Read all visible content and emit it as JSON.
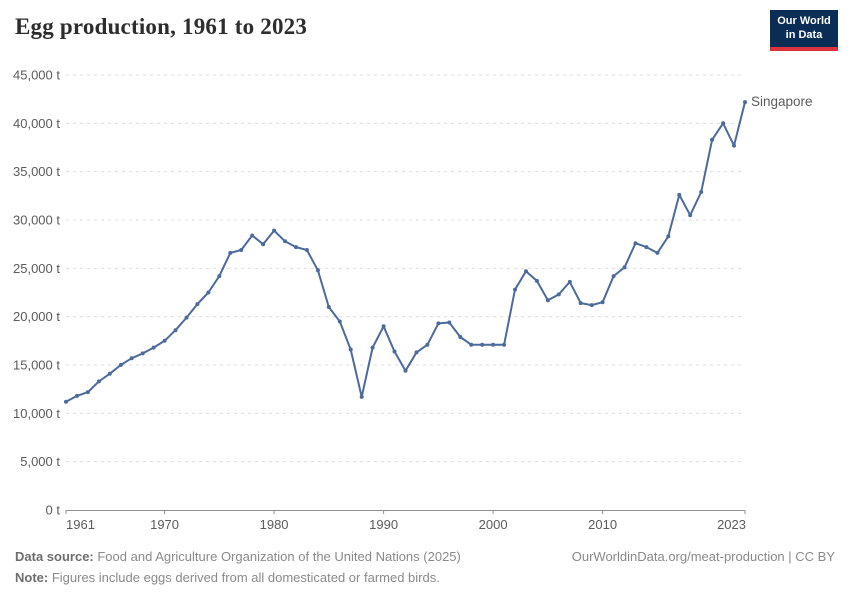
{
  "header": {
    "title": "Egg production, 1961 to 2023",
    "logo": {
      "line1": "Our World",
      "line2": "in Data"
    }
  },
  "chart_data": {
    "type": "line",
    "title": "Egg production, 1961 to 2023",
    "unit": "t",
    "grid": "horizontal-dashed",
    "legend_position": "end-of-line-label",
    "x": [
      1961,
      1962,
      1963,
      1964,
      1965,
      1966,
      1967,
      1968,
      1969,
      1970,
      1971,
      1972,
      1973,
      1974,
      1975,
      1976,
      1977,
      1978,
      1979,
      1980,
      1981,
      1982,
      1983,
      1984,
      1985,
      1986,
      1987,
      1988,
      1989,
      1990,
      1991,
      1992,
      1993,
      1994,
      1995,
      1996,
      1997,
      1998,
      1999,
      2000,
      2001,
      2002,
      2003,
      2004,
      2005,
      2006,
      2007,
      2008,
      2009,
      2010,
      2011,
      2012,
      2013,
      2014,
      2015,
      2016,
      2017,
      2018,
      2019,
      2020,
      2021,
      2022,
      2023
    ],
    "series": [
      {
        "name": "Singapore",
        "color": "#4c6a9c",
        "values": [
          11200,
          11800,
          12200,
          13300,
          14100,
          15000,
          15700,
          16200,
          16800,
          17500,
          18600,
          19900,
          21300,
          22500,
          24200,
          26600,
          26900,
          28400,
          27500,
          28900,
          27800,
          27200,
          26900,
          24800,
          21000,
          19500,
          16600,
          11700,
          16800,
          19000,
          16400,
          14400,
          16300,
          17100,
          19300,
          19400,
          17900,
          17100,
          17100,
          17100,
          17100,
          22800,
          24700,
          23700,
          21700,
          22300,
          23600,
          21400,
          21200,
          21500,
          24200,
          25100,
          27600,
          27200,
          26600,
          28300,
          32600,
          30500,
          32900,
          38300,
          40000,
          37700,
          42200
        ]
      }
    ],
    "ylim": [
      0,
      45000
    ],
    "yticks": [
      0,
      5000,
      10000,
      15000,
      20000,
      25000,
      30000,
      35000,
      40000,
      45000
    ],
    "ytick_labels": [
      "0 t",
      "5,000 t",
      "10,000 t",
      "15,000 t",
      "20,000 t",
      "25,000 t",
      "30,000 t",
      "35,000 t",
      "40,000 t",
      "45,000 t"
    ],
    "xticks": [
      1961,
      1970,
      1980,
      1990,
      2000,
      2010,
      2023
    ],
    "xtick_labels": [
      "1961",
      "1970",
      "1980",
      "1990",
      "2000",
      "2010",
      "2023"
    ]
  },
  "colors": {
    "line": "#4c6a9c",
    "grid": "#dcdcdc",
    "axis": "#8f8f8f",
    "tick_text": "#5b5b5b",
    "logo_bg": "#0a2d55",
    "logo_accent": "#dc323c"
  },
  "footer": {
    "source_label": "Data source:",
    "source_text": " Food and Agriculture Organization of the United Nations (2025)",
    "note_label": "Note:",
    "note_text": " Figures include eggs derived from all domesticated or farmed birds.",
    "attribution": "OurWorldinData.org/meat-production | CC BY"
  }
}
